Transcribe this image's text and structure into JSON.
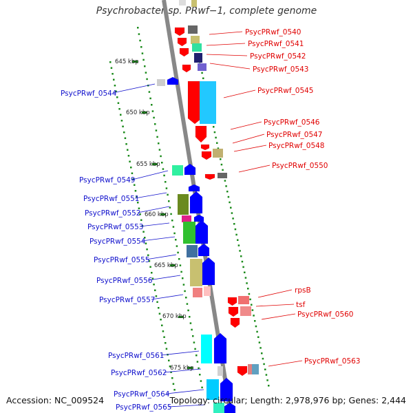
{
  "title": "Psychrobacter sp. PRwf−1, complete genome",
  "footer": {
    "accession": "Accession: NC_009524",
    "topology": "Topology: circular; Length: 2,978,976 bp; Genes: 2,444"
  },
  "colors": {
    "forward_label": "#e00000",
    "reverse_label": "#1010cc",
    "backbone": "#888888",
    "tick": "#1a8a1a"
  },
  "kbp_marks": [
    "645 kbp",
    "650 kbp",
    "655 kbp",
    "660 kbp",
    "665 kbp",
    "670 kbp",
    "675 kbp"
  ],
  "forward_genes": [
    "PsycPRwf_0540",
    "PsycPRwf_0541",
    "PsycPRwf_0542",
    "PsycPRwf_0543",
    "PsycPRwf_0545",
    "PsycPRwf_0546",
    "PsycPRwf_0547",
    "PsycPRwf_0548",
    "PsycPRwf_0550",
    "rpsB",
    "tsf",
    "PsycPRwf_0560",
    "PsycPRwf_0563"
  ],
  "reverse_genes": [
    "PsycPRwf_0544",
    "PsycPRwf_0549",
    "PsycPRwf_0551",
    "PsycPRwf_0552",
    "PsycPRwf_0553",
    "PsycPRwf_0554",
    "PsycPRwf_0555",
    "PsycPRwf_0556",
    "PsycPRwf_0557",
    "PsycPRwf_0561",
    "PsycPRwf_0562",
    "PsycPRwf_0564",
    "PsycPRwf_0565"
  ]
}
